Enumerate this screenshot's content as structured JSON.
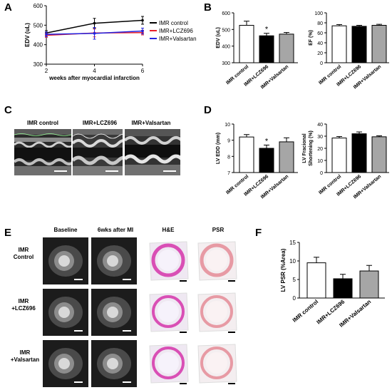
{
  "panels": {
    "A": "A",
    "B": "B",
    "C": "C",
    "D": "D",
    "E": "E",
    "F": "F"
  },
  "panel_C": {
    "labels": [
      "IMR control",
      "IMR+LCZ696",
      "IMR+Valsartan"
    ]
  },
  "panel_E": {
    "columns": [
      "Baseline",
      "6wks after MI",
      "H&E",
      "PSR"
    ],
    "rows": [
      {
        "line1": "IMR",
        "line2": "Control"
      },
      {
        "line1": "IMR",
        "line2": "+LCZ696"
      },
      {
        "line1": "IMR",
        "line2": "+Valsartan"
      }
    ]
  },
  "chart_data": [
    {
      "id": "A",
      "type": "line",
      "title": "",
      "xlabel": "weeks after myocardial infarction",
      "ylabel": "EDV (uL)",
      "x": [
        2,
        4,
        6
      ],
      "xlim": [
        2,
        6
      ],
      "xticks": [
        "2",
        "4",
        "6"
      ],
      "ylim": [
        300,
        600
      ],
      "yticks": [
        "300",
        "400",
        "500",
        "600"
      ],
      "legend_position": "right",
      "series": [
        {
          "name": "IMR control",
          "color": "#000000",
          "values": [
            460,
            510,
            525
          ],
          "errors": [
            12,
            25,
            20
          ]
        },
        {
          "name": "IMR+LCZ696",
          "color": "#e8202a",
          "values": [
            448,
            460,
            462
          ],
          "errors": [
            10,
            20,
            12
          ]
        },
        {
          "name": "IMR+Valsartan",
          "color": "#2323e0",
          "values": [
            453,
            458,
            470
          ],
          "errors": [
            12,
            30,
            15
          ]
        }
      ]
    },
    {
      "id": "B1",
      "type": "bar",
      "title": "",
      "ylabel": "EDV (uL)",
      "categories": [
        "IMR control",
        "IMR+LCZ696",
        "IMR+Valsartan"
      ],
      "values": [
        525,
        462,
        472
      ],
      "errors": [
        25,
        15,
        10
      ],
      "fills": [
        "#ffffff",
        "#000000",
        "#a6a6a6"
      ],
      "ylim": [
        300,
        600
      ],
      "yticks": [
        "300",
        "400",
        "500",
        "600"
      ],
      "annotations": [
        {
          "category": "IMR+LCZ696",
          "text": "*"
        }
      ]
    },
    {
      "id": "B2",
      "type": "bar",
      "title": "",
      "ylabel": "EF (%)",
      "categories": [
        "IMR control",
        "IMR+LCZ696",
        "IMR+Valsartan"
      ],
      "values": [
        74,
        73,
        75
      ],
      "errors": [
        2.5,
        2,
        2
      ],
      "fills": [
        "#ffffff",
        "#000000",
        "#a6a6a6"
      ],
      "ylim": [
        0,
        100
      ],
      "yticks": [
        "0",
        "20",
        "40",
        "60",
        "80",
        "100"
      ],
      "annotations": []
    },
    {
      "id": "D1",
      "type": "bar",
      "title": "",
      "ylabel": "LV EDD (mm)",
      "categories": [
        "IMR control",
        "IMR+LCZ696",
        "IMR+Valsartan"
      ],
      "values": [
        9.2,
        8.5,
        8.9
      ],
      "errors": [
        0.15,
        0.2,
        0.25
      ],
      "fills": [
        "#ffffff",
        "#000000",
        "#a6a6a6"
      ],
      "ylim": [
        7,
        10
      ],
      "yticks": [
        "7",
        "8",
        "9",
        "10"
      ],
      "annotations": [
        {
          "category": "IMR+LCZ696",
          "text": "*"
        }
      ]
    },
    {
      "id": "D2",
      "type": "bar",
      "title": "",
      "ylabel": "LV Fracional Shortening (%)",
      "categories": [
        "IMR control",
        "IMR+LCZ696",
        "IMR+Valsartan"
      ],
      "values": [
        28.5,
        32,
        29.5
      ],
      "errors": [
        1.2,
        1.5,
        0.8
      ],
      "fills": [
        "#ffffff",
        "#000000",
        "#a6a6a6"
      ],
      "ylim": [
        0,
        40
      ],
      "yticks": [
        "0",
        "10",
        "20",
        "30",
        "40"
      ],
      "annotations": []
    },
    {
      "id": "F",
      "type": "bar",
      "title": "",
      "ylabel": "LV PSR (%Area)",
      "categories": [
        "IMR control",
        "IMR+LCZ696",
        "IMR+Valsartan"
      ],
      "values": [
        9.5,
        5.2,
        7.3
      ],
      "errors": [
        1.5,
        1.2,
        1.5
      ],
      "fills": [
        "#ffffff",
        "#000000",
        "#a6a6a6"
      ],
      "ylim": [
        0,
        15
      ],
      "yticks": [
        "0",
        "5",
        "10",
        "15"
      ],
      "annotations": []
    }
  ]
}
